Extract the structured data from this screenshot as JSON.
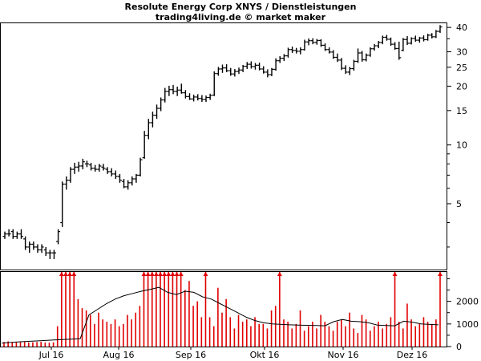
{
  "chart_data": {
    "type": "ohlc_bar_with_volume",
    "title": "Resolute Energy Corp XNYS / Dienstleistungen",
    "subtitle": "trading4living.de © market maker",
    "price_axis": {
      "scale": "log",
      "range": [
        2.3,
        42
      ],
      "ticks": [
        "40",
        "30",
        "25",
        "20",
        "15",
        "10",
        "5"
      ]
    },
    "volume_axis": {
      "range": [
        0,
        3300
      ],
      "ticks": [
        "2000",
        "1000",
        "0"
      ]
    },
    "x_ticks": [
      "Jul 16",
      "Aug 16",
      "Sep 16",
      "Okt 16",
      "Nov 16",
      "Dez 16"
    ],
    "price_series": [
      [
        3.4,
        3.6,
        3.3,
        3.5
      ],
      [
        3.5,
        3.7,
        3.4,
        3.5
      ],
      [
        3.6,
        3.7,
        3.3,
        3.4
      ],
      [
        3.4,
        3.6,
        3.3,
        3.5
      ],
      [
        3.5,
        3.7,
        3.3,
        3.4
      ],
      [
        3.3,
        3.4,
        2.9,
        3.0
      ],
      [
        3.0,
        3.2,
        2.8,
        3.1
      ],
      [
        3.1,
        3.2,
        2.9,
        3.0
      ],
      [
        3.0,
        3.1,
        2.8,
        2.9
      ],
      [
        2.9,
        3.1,
        2.8,
        3.0
      ],
      [
        2.9,
        3.0,
        2.7,
        2.8
      ],
      [
        2.8,
        2.9,
        2.6,
        2.8
      ],
      [
        2.8,
        2.9,
        2.6,
        2.8
      ],
      [
        3.2,
        3.7,
        3.1,
        3.6
      ],
      [
        4.0,
        6.5,
        3.8,
        6.3
      ],
      [
        6.3,
        6.9,
        5.9,
        6.6
      ],
      [
        6.6,
        7.7,
        6.4,
        7.5
      ],
      [
        7.5,
        8.1,
        7.1,
        7.7
      ],
      [
        7.7,
        8.2,
        7.3,
        7.8
      ],
      [
        7.8,
        8.5,
        7.5,
        8.2
      ],
      [
        8.0,
        8.3,
        7.7,
        8.0
      ],
      [
        7.9,
        8.1,
        7.4,
        7.6
      ],
      [
        7.6,
        7.9,
        7.3,
        7.5
      ],
      [
        7.5,
        8.0,
        7.3,
        7.8
      ],
      [
        7.7,
        8.0,
        7.4,
        7.6
      ],
      [
        7.5,
        7.7,
        7.1,
        7.3
      ],
      [
        7.3,
        7.6,
        6.9,
        7.1
      ],
      [
        7.1,
        7.4,
        6.7,
        6.9
      ],
      [
        6.9,
        7.1,
        6.4,
        6.6
      ],
      [
        6.5,
        6.7,
        6.0,
        6.1
      ],
      [
        6.1,
        6.6,
        5.9,
        6.4
      ],
      [
        6.4,
        6.9,
        6.2,
        6.7
      ],
      [
        6.7,
        7.1,
        6.4,
        7.0
      ],
      [
        7.0,
        8.6,
        6.9,
        8.4
      ],
      [
        8.6,
        11.8,
        8.5,
        11.2
      ],
      [
        11.2,
        13.6,
        10.7,
        13.0
      ],
      [
        13.0,
        14.8,
        12.3,
        14.2
      ],
      [
        14.2,
        16.1,
        13.6,
        15.4
      ],
      [
        15.4,
        17.5,
        14.9,
        17.0
      ],
      [
        17.0,
        19.6,
        16.5,
        18.8
      ],
      [
        18.8,
        20.1,
        17.8,
        19.2
      ],
      [
        19.2,
        20.3,
        18.2,
        18.8
      ],
      [
        18.8,
        19.9,
        17.8,
        19.1
      ],
      [
        19.1,
        20.6,
        18.3,
        18.5
      ],
      [
        18.5,
        19.1,
        17.3,
        17.7
      ],
      [
        17.7,
        18.4,
        17.0,
        17.2
      ],
      [
        17.2,
        18.1,
        16.7,
        17.6
      ],
      [
        17.6,
        18.2,
        16.9,
        17.3
      ],
      [
        17.3,
        18.0,
        16.6,
        17.1
      ],
      [
        17.1,
        17.9,
        16.6,
        17.5
      ],
      [
        17.5,
        18.3,
        17.0,
        17.9
      ],
      [
        18.0,
        23.8,
        17.8,
        23.2
      ],
      [
        23.2,
        25.1,
        22.6,
        24.5
      ],
      [
        24.5,
        25.8,
        23.4,
        24.8
      ],
      [
        24.8,
        25.9,
        23.6,
        24.0
      ],
      [
        24.0,
        24.8,
        22.6,
        23.1
      ],
      [
        23.1,
        24.5,
        22.4,
        23.8
      ],
      [
        23.8,
        24.9,
        23.1,
        24.2
      ],
      [
        24.2,
        25.7,
        23.6,
        25.3
      ],
      [
        25.3,
        26.6,
        24.5,
        25.9
      ],
      [
        25.9,
        26.8,
        24.6,
        25.2
      ],
      [
        25.2,
        26.3,
        24.3,
        25.6
      ],
      [
        25.6,
        26.4,
        24.1,
        24.5
      ],
      [
        24.5,
        25.3,
        23.2,
        23.6
      ],
      [
        23.6,
        24.4,
        22.2,
        22.9
      ],
      [
        22.9,
        24.8,
        22.5,
        24.4
      ],
      [
        24.4,
        27.8,
        24.0,
        27.0
      ],
      [
        27.0,
        28.5,
        26.3,
        27.8
      ],
      [
        27.8,
        29.2,
        26.9,
        28.6
      ],
      [
        28.6,
        31.5,
        28.0,
        30.8
      ],
      [
        30.8,
        31.9,
        29.6,
        30.5
      ],
      [
        30.5,
        31.4,
        29.4,
        30.2
      ],
      [
        30.2,
        31.6,
        29.1,
        30.8
      ],
      [
        30.8,
        34.6,
        30.4,
        33.7
      ],
      [
        33.7,
        35.1,
        32.4,
        34.2
      ],
      [
        34.2,
        35.2,
        32.8,
        33.5
      ],
      [
        33.5,
        34.9,
        32.6,
        34.3
      ],
      [
        34.3,
        34.8,
        31.8,
        32.4
      ],
      [
        32.4,
        33.1,
        30.3,
        30.8
      ],
      [
        30.8,
        31.6,
        29.4,
        29.9
      ],
      [
        29.9,
        30.6,
        27.6,
        28.1
      ],
      [
        28.1,
        29.4,
        26.6,
        27.2
      ],
      [
        27.2,
        27.9,
        24.2,
        24.7
      ],
      [
        24.7,
        25.6,
        23.1,
        23.6
      ],
      [
        23.6,
        25.1,
        22.8,
        24.6
      ],
      [
        24.6,
        27.3,
        24.0,
        26.8
      ],
      [
        26.8,
        31.2,
        26.3,
        29.6
      ],
      [
        29.6,
        30.3,
        26.7,
        27.3
      ],
      [
        27.3,
        29.4,
        26.8,
        28.8
      ],
      [
        28.8,
        31.6,
        28.3,
        31.1
      ],
      [
        31.1,
        32.9,
        30.4,
        32.2
      ],
      [
        32.2,
        34.1,
        31.3,
        33.5
      ],
      [
        33.5,
        36.3,
        32.8,
        35.6
      ],
      [
        35.6,
        36.6,
        34.2,
        34.8
      ],
      [
        34.8,
        35.5,
        32.2,
        32.8
      ],
      [
        32.8,
        33.6,
        30.7,
        31.2
      ],
      [
        31.2,
        33.8,
        27.3,
        28.0
      ],
      [
        30.5,
        35.3,
        30.2,
        34.7
      ],
      [
        34.7,
        36.1,
        32.5,
        33.2
      ],
      [
        33.2,
        35.6,
        32.7,
        35.1
      ],
      [
        35.1,
        36.3,
        33.8,
        34.4
      ],
      [
        34.4,
        35.8,
        33.4,
        35.3
      ],
      [
        35.3,
        36.4,
        33.9,
        34.6
      ],
      [
        34.6,
        37.1,
        34.2,
        36.5
      ],
      [
        36.5,
        37.4,
        35.1,
        35.8
      ],
      [
        35.8,
        38.8,
        35.3,
        38.2
      ],
      [
        38.2,
        41.1,
        37.5,
        40.2
      ]
    ],
    "volume_bars": [
      200,
      230,
      190,
      210,
      200,
      220,
      180,
      190,
      200,
      210,
      180,
      170,
      190,
      900,
      3300,
      3300,
      3300,
      3300,
      2100,
      1700,
      1600,
      1400,
      1000,
      1500,
      1200,
      1100,
      1000,
      1200,
      900,
      1000,
      1400,
      1200,
      1500,
      1800,
      3300,
      3300,
      3300,
      3300,
      3300,
      3300,
      3300,
      3300,
      3300,
      3300,
      2500,
      2900,
      1800,
      2000,
      1300,
      3300,
      1300,
      900,
      2600,
      1500,
      2100,
      1300,
      800,
      1400,
      1100,
      1200,
      900,
      1300,
      1000,
      1000,
      800,
      1600,
      1800,
      3300,
      1200,
      1100,
      800,
      1000,
      1600,
      700,
      900,
      1100,
      800,
      1400,
      1100,
      900,
      700,
      1100,
      1200,
      900,
      1500,
      800,
      600,
      1400,
      1200,
      700,
      900,
      1100,
      800,
      1000,
      1300,
      3300,
      1100,
      800,
      1900,
      1200,
      900,
      1000,
      1300,
      1100,
      1000,
      1200,
      3300
    ],
    "volume_capped_at_top": true,
    "avg_volume_line": [
      150,
      180,
      210,
      230,
      250,
      270,
      290,
      310,
      330,
      350,
      1400,
      1650,
      1900,
      2100,
      2250,
      2350,
      2450,
      2530,
      2620,
      2400,
      2300,
      2450,
      2400,
      2200,
      2100,
      1900,
      1700,
      1500,
      1300,
      1150,
      1050,
      1000,
      980,
      960,
      950,
      940,
      930,
      920,
      1100,
      1200,
      1120,
      1100,
      1050,
      950,
      930,
      920,
      1120,
      1080,
      1000,
      980,
      960
    ]
  }
}
